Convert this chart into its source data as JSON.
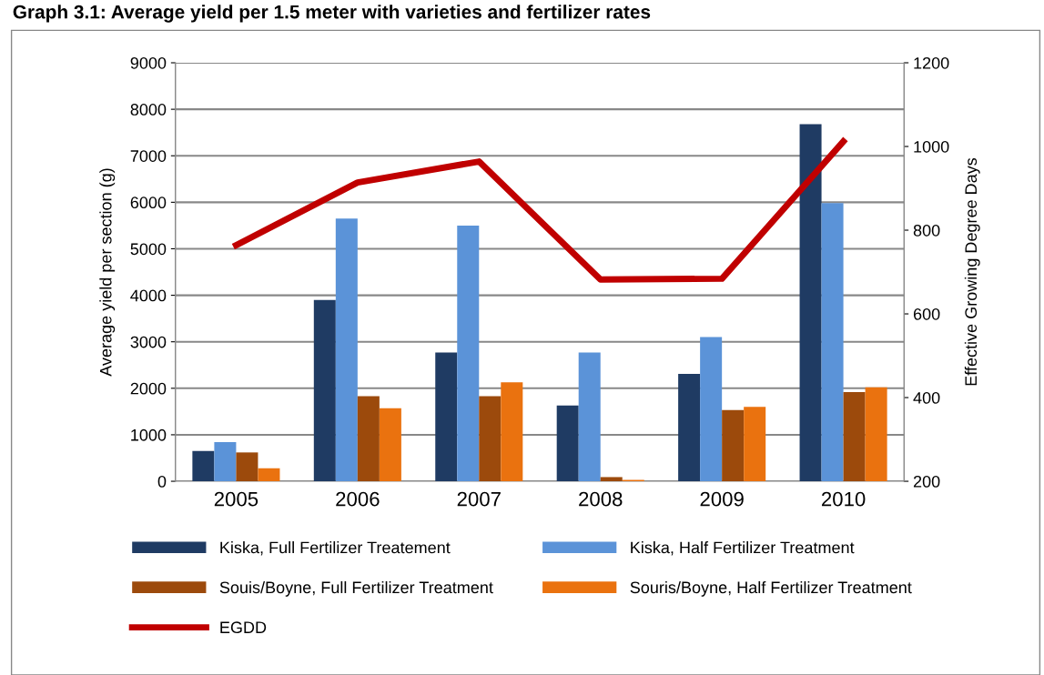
{
  "chart_data": {
    "type": "bar",
    "title": "Graph 3.1: Average yield per 1.5 meter with varieties and fertilizer rates",
    "categories": [
      "2005",
      "2006",
      "2007",
      "2008",
      "2009",
      "2010"
    ],
    "ylabel": "Average yield per section (g)",
    "y2label": "Effective Growing Degree Days",
    "series": [
      {
        "name": "Kiska, Full Fertilizer Treatement",
        "color": "#1f3b63",
        "values": [
          650,
          3900,
          2770,
          1630,
          2310,
          7680
        ]
      },
      {
        "name": "Kiska, Half Fertilizer Treatment",
        "color": "#5b93d8",
        "values": [
          840,
          5650,
          5500,
          2770,
          3100,
          5980
        ]
      },
      {
        "name": "Souis/Boyne, Full Fertilizer Treatment",
        "color": "#9c4a0c",
        "values": [
          620,
          1830,
          1830,
          90,
          1530,
          1920
        ]
      },
      {
        "name": "Souris/Boyne, Half Fertilizer Treatment",
        "color": "#ea720f",
        "values": [
          280,
          1570,
          2130,
          30,
          1600,
          2020
        ]
      },
      {
        "name": "EGDD",
        "type": "line",
        "axis": "y2",
        "color": "#c00000",
        "values": [
          764,
          914,
          964,
          682,
          684,
          1012
        ]
      }
    ],
    "ylim": [
      0,
      9000
    ],
    "yticks": [
      0,
      1000,
      2000,
      3000,
      4000,
      5000,
      6000,
      7000,
      8000,
      9000
    ],
    "y2lim": [
      200,
      1200
    ],
    "y2ticks": [
      200,
      400,
      600,
      800,
      1000,
      1200
    ],
    "grid": "y",
    "legend": "bottom",
    "marker": "none",
    "line_style": "solid"
  }
}
